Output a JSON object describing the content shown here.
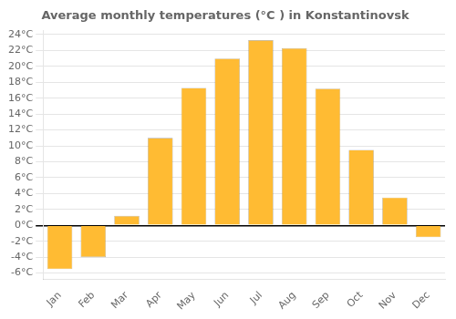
{
  "chart_data": {
    "type": "bar",
    "title": "Average monthly temperatures (°C ) in Konstantinovsk",
    "categories": [
      "Jan",
      "Feb",
      "Mar",
      "Apr",
      "May",
      "Jun",
      "Jul",
      "Aug",
      "Sep",
      "Oct",
      "Nov",
      "Dec"
    ],
    "values": [
      -5.5,
      -4.0,
      1.2,
      11.0,
      17.3,
      21.0,
      23.3,
      22.3,
      17.2,
      9.5,
      3.5,
      -1.5
    ],
    "color": "#FFBB33",
    "ylim": [
      -6.8,
      24.5
    ],
    "yticks": [
      {
        "value": -6,
        "label": "-6°C"
      },
      {
        "value": -4,
        "label": "-4°C"
      },
      {
        "value": -2,
        "label": "-2°C"
      },
      {
        "value": 0,
        "label": "0°C"
      },
      {
        "value": 2,
        "label": "2°C"
      },
      {
        "value": 4,
        "label": "4°C"
      },
      {
        "value": 6,
        "label": "6°C"
      },
      {
        "value": 8,
        "label": "8°C"
      },
      {
        "value": 10,
        "label": "10°C"
      },
      {
        "value": 12,
        "label": "12°C"
      },
      {
        "value": 14,
        "label": "14°C"
      },
      {
        "value": 16,
        "label": "16°C"
      },
      {
        "value": 18,
        "label": "18°C"
      },
      {
        "value": 20,
        "label": "20°C"
      },
      {
        "value": 22,
        "label": "22°C"
      },
      {
        "value": 24,
        "label": "24°C"
      }
    ],
    "grid": true
  }
}
